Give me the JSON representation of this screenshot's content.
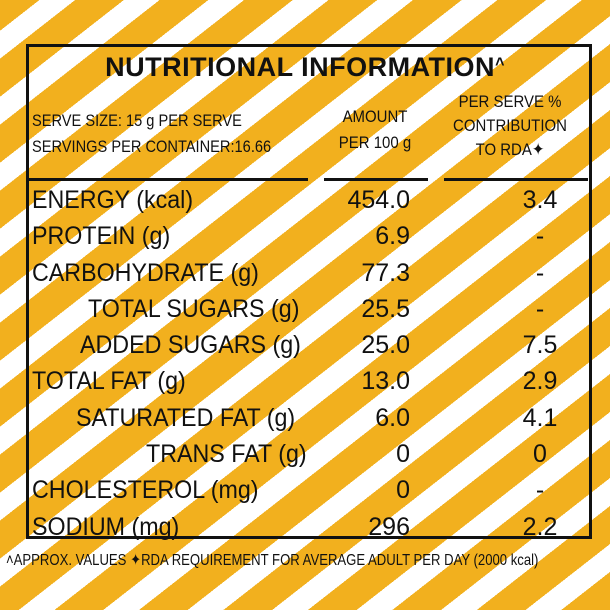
{
  "title": {
    "text": "NUTRITIONAL INFORMATION",
    "mark": "˄"
  },
  "header": {
    "serve_size": "SERVE SIZE: 15 g PER SERVE",
    "servings": "SERVINGS PER CONTAINER:16.66",
    "amount_line1": "AMOUNT",
    "amount_line2": "PER 100 g",
    "rda_line1": "PER SERVE %",
    "rda_line2": "CONTRIBUTION",
    "rda_line3": "TO RDA✦"
  },
  "rows": [
    {
      "label": "ENERGY (kcal)",
      "amount": "454.0",
      "rda": "3.4"
    },
    {
      "label": "PROTEIN (g)",
      "amount": "6.9",
      "rda": "-"
    },
    {
      "label": "CARBOHYDRATE (g)",
      "amount": "77.3",
      "rda": "-"
    },
    {
      "label": "TOTAL SUGARS (g)",
      "amount": "25.5",
      "rda": "-"
    },
    {
      "label": "ADDED SUGARS (g)",
      "amount": "25.0",
      "rda": "7.5"
    },
    {
      "label": "TOTAL FAT (g)",
      "amount": "13.0",
      "rda": "2.9"
    },
    {
      "label": "SATURATED FAT (g)",
      "amount": "6.0",
      "rda": "4.1"
    },
    {
      "label": "TRANS FAT (g)",
      "amount": "0",
      "rda": "0"
    },
    {
      "label": "CHOLESTEROL (mg)",
      "amount": "0",
      "rda": "-"
    },
    {
      "label": "SODIUM (mg)",
      "amount": "296",
      "rda": "2.2"
    }
  ],
  "footer": "˄APPROX. VALUES ✦RDA REQUIREMENT FOR AVERAGE ADULT PER DAY (2000 kcal)",
  "colors": {
    "stripe": "#f2b01e",
    "background": "#ffffff",
    "text": "#111111"
  }
}
